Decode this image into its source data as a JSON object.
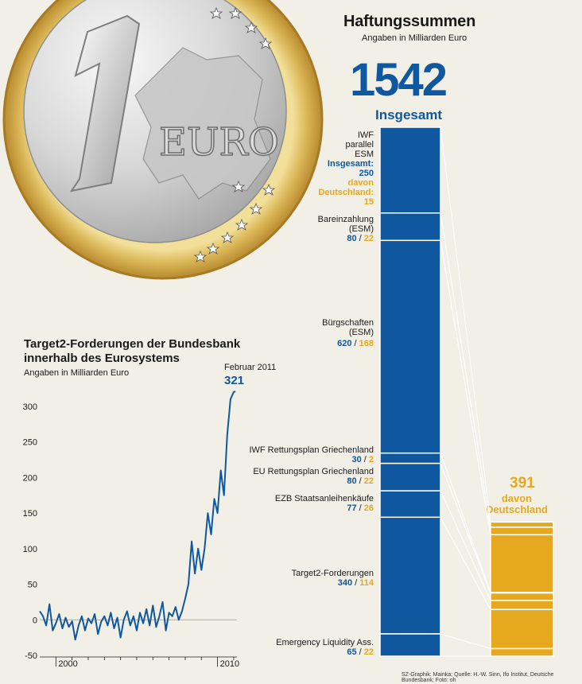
{
  "right_panel": {
    "title": "Haftungssummen",
    "subtitle": "Angaben in Milliarden Euro",
    "total_value": "1542",
    "total_label": "Insgesamt",
    "germany_value": "391",
    "germany_label_line1": "davon",
    "germany_label_line2": "Deutschland",
    "items": [
      {
        "label_lines": [
          "IWF",
          "parallel",
          "ESM"
        ],
        "blue_lines": [
          "Insgesamt:",
          "250"
        ],
        "gold_lines": [
          "davon",
          "Deutschland:",
          "15"
        ]
      },
      {
        "label_lines": [
          "Bareinzahlung",
          "(ESM)"
        ],
        "value": "80",
        "sep": " / ",
        "germany": "22"
      },
      {
        "label_lines": [
          "Bürgschaften",
          "(ESM)"
        ],
        "value": "620",
        "sep": " / ",
        "germany": "168"
      },
      {
        "label_lines": [
          "IWF Rettungsplan Griechenland"
        ],
        "value": "30",
        "sep": " / ",
        "germany": "2"
      },
      {
        "label_lines": [
          "EU Rettungsplan Griechenland"
        ],
        "value": "80",
        "sep": " / ",
        "germany": "22"
      },
      {
        "label_lines": [
          "EZB Staatsanleihenkäufe"
        ],
        "value": "77",
        "sep": " / ",
        "germany": "26"
      },
      {
        "label_lines": [
          "Target2-Forderungen"
        ],
        "value": "340",
        "sep": " / ",
        "germany": "114"
      },
      {
        "label_lines": [
          "Emergency Liquidity Ass."
        ],
        "value": "65",
        "sep": " / ",
        "germany": "22"
      }
    ]
  },
  "left_panel": {
    "title_line1": "Target2-Forderungen der Bundesbank",
    "title_line2": "innerhalb des Eurosystems",
    "subtitle": "Angaben in Milliarden Euro",
    "end_label": "Februar 2011",
    "end_value": "321"
  },
  "coin": {
    "numeral": "1",
    "word": "EURO"
  },
  "credit": "SZ-Graphik: Mainka; Quelle: H.-W. Sinn, Ifo Institut, Deutsche Bundesbank; Foto: oh",
  "colors": {
    "blue": "#0f58a0",
    "gold": "#e6a81e",
    "background": "#f2efe7"
  },
  "chart_data": [
    {
      "type": "bar",
      "title": "Haftungssummen",
      "ylabel": "Milliarden Euro",
      "categories": [
        "IWF parallel ESM",
        "Bareinzahlung (ESM)",
        "Bürgschaften (ESM)",
        "IWF Rettungsplan Griechenland",
        "EU Rettungsplan Griechenland",
        "EZB Staatsanleihenkäufe",
        "Target2-Forderungen",
        "Emergency Liquidity Ass."
      ],
      "series": [
        {
          "name": "Insgesamt",
          "values": [
            250,
            80,
            620,
            30,
            80,
            77,
            340,
            65
          ],
          "total": 1542
        },
        {
          "name": "davon Deutschland",
          "values": [
            15,
            22,
            168,
            2,
            22,
            26,
            114,
            22
          ],
          "total": 391
        }
      ]
    },
    {
      "type": "line",
      "title": "Target2-Forderungen der Bundesbank innerhalb des Eurosystems",
      "ylabel": "Milliarden Euro",
      "ylim": [
        -50,
        330
      ],
      "xlim": [
        1999,
        2011.2
      ],
      "yticks": [
        -50,
        0,
        50,
        100,
        150,
        200,
        250,
        300
      ],
      "xtick_labels": [
        "2000",
        "2010"
      ],
      "grid": false,
      "x": [
        1999.0,
        1999.2,
        1999.4,
        1999.6,
        1999.8,
        2000.0,
        2000.2,
        2000.4,
        2000.6,
        2000.8,
        2001.0,
        2001.2,
        2001.4,
        2001.6,
        2001.8,
        2002.0,
        2002.2,
        2002.4,
        2002.6,
        2002.8,
        2003.0,
        2003.2,
        2003.4,
        2003.6,
        2003.8,
        2004.0,
        2004.2,
        2004.4,
        2004.6,
        2004.8,
        2005.0,
        2005.2,
        2005.4,
        2005.6,
        2005.8,
        2006.0,
        2006.2,
        2006.4,
        2006.6,
        2006.8,
        2007.0,
        2007.2,
        2007.4,
        2007.6,
        2007.8,
        2008.0,
        2008.2,
        2008.4,
        2008.6,
        2008.8,
        2009.0,
        2009.2,
        2009.4,
        2009.6,
        2009.8,
        2010.0,
        2010.2,
        2010.4,
        2010.6,
        2010.8,
        2011.0,
        2011.1
      ],
      "series": [
        {
          "values": [
            12,
            5,
            -8,
            22,
            -15,
            -5,
            8,
            -12,
            3,
            -10,
            -2,
            -28,
            -8,
            5,
            -15,
            2,
            -5,
            8,
            -20,
            -3,
            5,
            -8,
            10,
            -12,
            3,
            -25,
            0,
            12,
            -8,
            5,
            -15,
            10,
            -5,
            15,
            -8,
            20,
            -10,
            5,
            25,
            -15,
            10,
            5,
            18,
            0,
            12,
            30,
            50,
            110,
            65,
            100,
            70,
            100,
            150,
            120,
            170,
            150,
            210,
            175,
            260,
            310,
            320,
            321
          ]
        }
      ]
    }
  ]
}
